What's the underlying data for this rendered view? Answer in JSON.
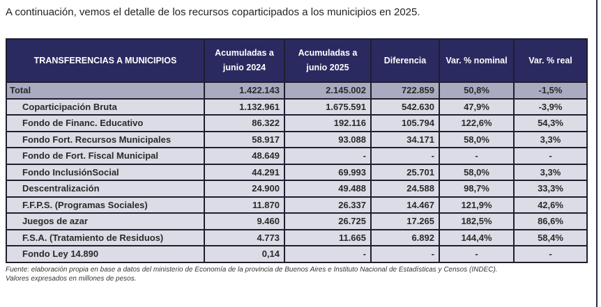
{
  "intro": "A continuación, vemos el detalle de los recursos coparticipados a los municipios en 2025.",
  "table": {
    "headers": [
      "TRANSFERENCIAS A MUNICIPIOS",
      "Acumuladas a junio 2024",
      "Acumuladas a junio 2025",
      "Diferencia",
      "Var. % nominal",
      "Var. % real"
    ],
    "rows": [
      [
        "Total",
        "1.422.143",
        "2.145.002",
        "722.859",
        "50,8%",
        "-1,5%"
      ],
      [
        "Coparticipación Bruta",
        "1.132.961",
        "1.675.591",
        "542.630",
        "47,9%",
        "-3,9%"
      ],
      [
        "Fondo de Financ. Educativo",
        "86.322",
        "192.116",
        "105.794",
        "122,6%",
        "54,3%"
      ],
      [
        "Fondo Fort. Recursos Municipales",
        "58.917",
        "93.088",
        "34.171",
        "58,0%",
        "3,3%"
      ],
      [
        "Fondo de Fort. Fiscal Municipal",
        "48.649",
        "-",
        "-",
        "-",
        "-"
      ],
      [
        "Fondo InclusiónSocial",
        "44.291",
        "69.993",
        "25.701",
        "58,0%",
        "3,3%"
      ],
      [
        "Descentralización",
        "24.900",
        "49.488",
        "24.588",
        "98,7%",
        "33,3%"
      ],
      [
        "F.F.P.S. (Programas Sociales)",
        "11.870",
        "26.337",
        "14.467",
        "121,9%",
        "42,6%"
      ],
      [
        "Juegos de azar",
        "9.460",
        "26.725",
        "17.265",
        "182,5%",
        "86,6%"
      ],
      [
        "F.S.A. (Tratamiento de Residuos)",
        "4.773",
        "11.665",
        "6.892",
        "144,4%",
        "58,4%"
      ],
      [
        "Fondo Ley 14.890",
        "0,14",
        "-",
        "-",
        "-",
        "-"
      ]
    ]
  },
  "footnote": {
    "line1": "Fuente: elaboración propia en base a datos del ministerio de Economía de la provincia de Buenos Aires e Instituto Nacional de Estadísticas y Censos (INDEC).",
    "line2": "Valores expresados en millones de pesos."
  },
  "colors": {
    "header_bg": "#2b2a60",
    "total_bg": "#aaaac0",
    "row_bg": "#dcdce6"
  }
}
